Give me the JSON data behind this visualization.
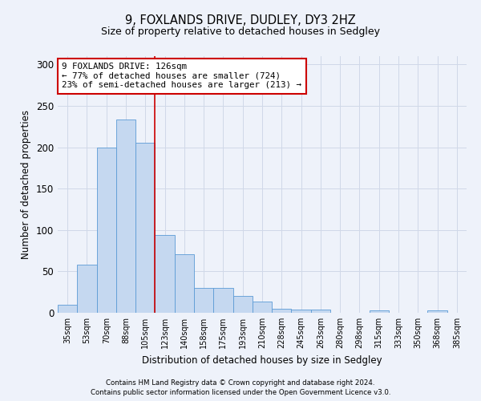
{
  "title1": "9, FOXLANDS DRIVE, DUDLEY, DY3 2HZ",
  "title2": "Size of property relative to detached houses in Sedgley",
  "xlabel": "Distribution of detached houses by size in Sedgley",
  "ylabel": "Number of detached properties",
  "categories": [
    "35sqm",
    "53sqm",
    "70sqm",
    "88sqm",
    "105sqm",
    "123sqm",
    "140sqm",
    "158sqm",
    "175sqm",
    "193sqm",
    "210sqm",
    "228sqm",
    "245sqm",
    "263sqm",
    "280sqm",
    "298sqm",
    "315sqm",
    "333sqm",
    "350sqm",
    "368sqm",
    "385sqm"
  ],
  "values": [
    10,
    58,
    200,
    233,
    205,
    94,
    71,
    30,
    30,
    20,
    14,
    5,
    4,
    4,
    0,
    0,
    3,
    0,
    0,
    3,
    0
  ],
  "bar_color": "#c5d8f0",
  "bar_edge_color": "#5b9bd5",
  "vline_color": "#cc0000",
  "annotation_text": "9 FOXLANDS DRIVE: 126sqm\n← 77% of detached houses are smaller (724)\n23% of semi-detached houses are larger (213) →",
  "annotation_box_color": "#ffffff",
  "annotation_box_edge": "#cc0000",
  "footnote1": "Contains HM Land Registry data © Crown copyright and database right 2024.",
  "footnote2": "Contains public sector information licensed under the Open Government Licence v3.0.",
  "ylim": [
    0,
    310
  ],
  "yticks": [
    0,
    50,
    100,
    150,
    200,
    250,
    300
  ],
  "grid_color": "#d0d8e8",
  "bg_color": "#eef2fa"
}
